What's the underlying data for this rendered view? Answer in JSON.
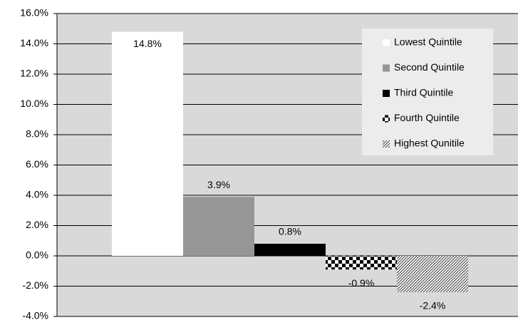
{
  "chart_data": {
    "type": "bar",
    "categories": [
      null
    ],
    "series": [
      {
        "name": "Lowest Quintile",
        "color": "#ffffff",
        "pattern": "solid",
        "values": [
          14.8
        ],
        "value_labels": [
          "14.8%"
        ]
      },
      {
        "name": "Second Quintile",
        "color": "#969696",
        "pattern": "solid",
        "values": [
          3.9
        ],
        "value_labels": [
          "3.9%"
        ]
      },
      {
        "name": "Third Quintile",
        "color": "#000000",
        "pattern": "solid",
        "values": [
          0.8
        ],
        "value_labels": [
          "0.8%"
        ]
      },
      {
        "name": "Fourth Quintile",
        "color": "#000000",
        "pattern": "checker",
        "values": [
          -0.9
        ],
        "value_labels": [
          "-0.9%"
        ]
      },
      {
        "name": "Highest Qunitile",
        "color": "#555555",
        "pattern": "hatch",
        "values": [
          -2.4
        ],
        "value_labels": [
          "-2.4%"
        ]
      }
    ],
    "ylim": [
      -4,
      16
    ],
    "yticks": [
      {
        "value": -4,
        "label": "-4.0%"
      },
      {
        "value": -2,
        "label": "-2.0%"
      },
      {
        "value": 0,
        "label": "0.0%"
      },
      {
        "value": 2,
        "label": "2.0%"
      },
      {
        "value": 4,
        "label": "4.0%"
      },
      {
        "value": 6,
        "label": "6.0%"
      },
      {
        "value": 8,
        "label": "8.0%"
      },
      {
        "value": 10,
        "label": "10.0%"
      },
      {
        "value": 12,
        "label": "12.0%"
      },
      {
        "value": 14,
        "label": "14.0%"
      },
      {
        "value": 16,
        "label": "16.0%"
      }
    ],
    "grid": true,
    "legend": "upper-right"
  }
}
